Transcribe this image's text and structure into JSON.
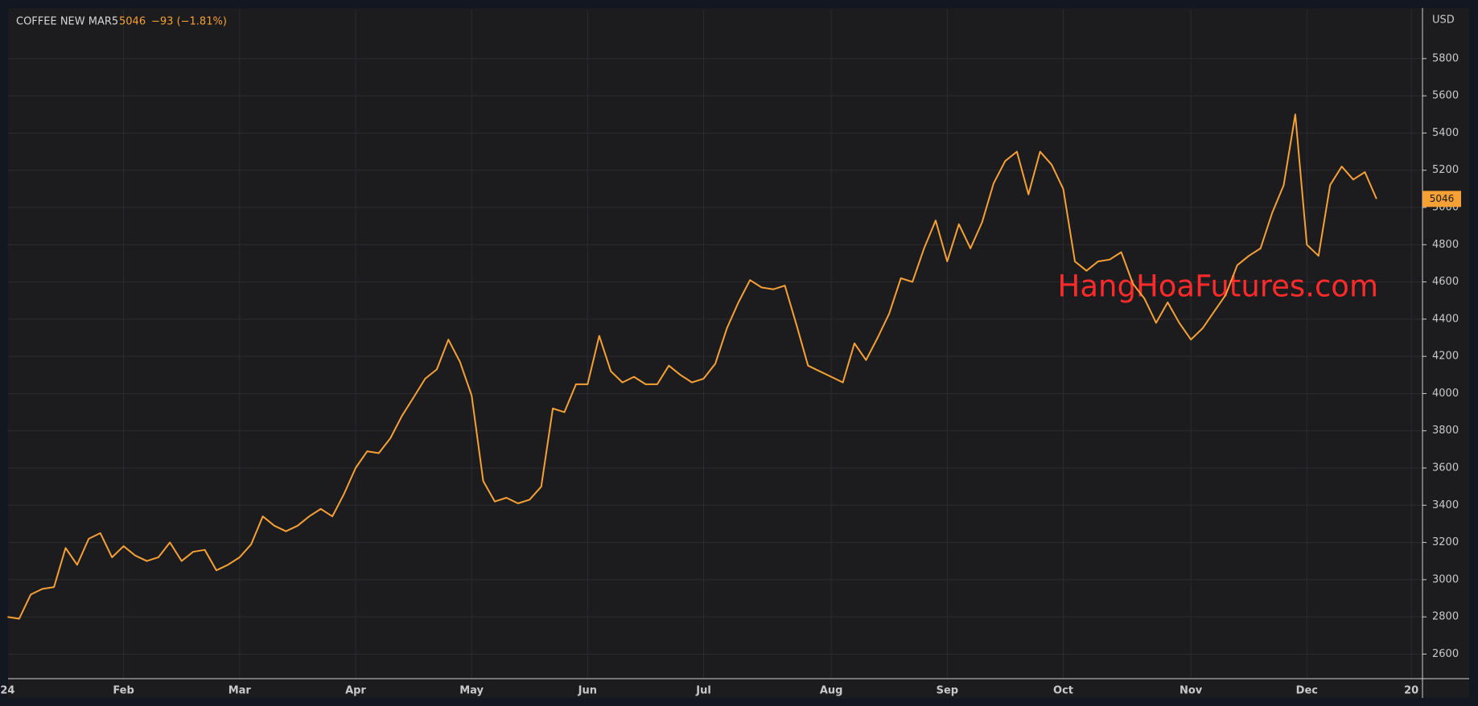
{
  "chart_data": {
    "type": "line",
    "title": "COFFEE NEW MAR5",
    "last_price": "5046",
    "change": "−93 (−1.81%)",
    "y_axis_label": "USD",
    "annotation": "HangHoaFutures.com",
    "price_tag": "5046",
    "grid": true,
    "ylim": [
      2468,
      6063
    ],
    "yticks": [
      2600,
      2800,
      3000,
      3200,
      3400,
      3600,
      3800,
      4000,
      4200,
      4400,
      4600,
      4800,
      5000,
      5200,
      5400,
      5600,
      5800
    ],
    "categories": [
      "24",
      null,
      null,
      null,
      null,
      null,
      null,
      null,
      null,
      null,
      "Feb",
      null,
      null,
      null,
      null,
      null,
      null,
      null,
      null,
      null,
      "Mar",
      null,
      null,
      null,
      null,
      null,
      null,
      null,
      null,
      null,
      "Apr",
      null,
      null,
      null,
      null,
      null,
      null,
      null,
      null,
      null,
      "May",
      null,
      null,
      null,
      null,
      null,
      null,
      null,
      null,
      null,
      "Jun",
      null,
      null,
      null,
      null,
      null,
      null,
      null,
      null,
      null,
      "Jul",
      null,
      null,
      null,
      null,
      null,
      null,
      null,
      null,
      null,
      null,
      "Aug",
      null,
      null,
      null,
      null,
      null,
      null,
      null,
      null,
      null,
      "Sep",
      null,
      null,
      null,
      null,
      null,
      null,
      null,
      null,
      null,
      "Oct",
      null,
      null,
      null,
      null,
      null,
      null,
      null,
      null,
      null,
      null,
      "Nov",
      null,
      null,
      null,
      null,
      null,
      null,
      null,
      null,
      null,
      "Dec",
      null,
      null,
      null,
      null,
      null,
      null,
      null,
      null,
      "20"
    ],
    "series": [
      {
        "name": "COFFEE NEW MAR5",
        "color": "#f7a035",
        "values": [
          2800,
          2790,
          2920,
          2950,
          2960,
          3170,
          3080,
          3220,
          3250,
          3120,
          3180,
          3130,
          3100,
          3120,
          3200,
          3100,
          3150,
          3160,
          3050,
          3080,
          3120,
          3190,
          3340,
          3290,
          3260,
          3290,
          3340,
          3380,
          3340,
          3460,
          3600,
          3690,
          3680,
          3760,
          3880,
          3980,
          4080,
          4130,
          4290,
          4170,
          3990,
          3530,
          3420,
          3440,
          3410,
          3430,
          3500,
          3920,
          3900,
          4050,
          4050,
          4310,
          4120,
          4060,
          4090,
          4050,
          4050,
          4150,
          4100,
          4060,
          4080,
          4160,
          4350,
          4490,
          4610,
          4570,
          4560,
          4580,
          4370,
          4150,
          4120,
          4090,
          4060,
          4270,
          4180,
          4300,
          4430,
          4620,
          4600,
          4780,
          4930,
          4710,
          4910,
          4780,
          4920,
          5130,
          5250,
          5300,
          5070,
          5300,
          5230,
          5100,
          4710,
          4660,
          4710,
          4720,
          4760,
          4590,
          4510,
          4380,
          4490,
          4380,
          4290,
          4350,
          4440,
          4530,
          4690,
          4740,
          4780,
          4970,
          5120,
          5500,
          4800,
          4740,
          5120,
          5220,
          5150,
          5190,
          5046,
          null,
          null,
          null
        ]
      }
    ]
  }
}
